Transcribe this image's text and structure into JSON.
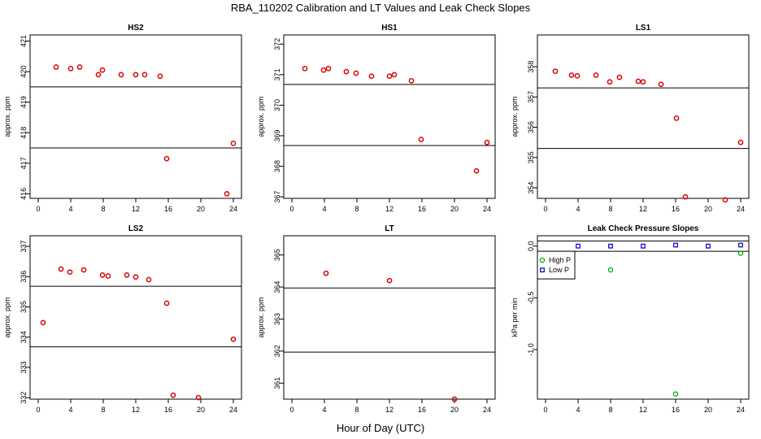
{
  "title": "RBA_110202  Calibration and LT Values and Leak Check Slopes",
  "xlabel": "Hour of Day (UTC)",
  "colors": {
    "point_red": "#dd0000",
    "high_p": "#00aa00",
    "low_p": "#0000cc",
    "line": "#000000"
  },
  "chart_data": [
    {
      "type": "scatter",
      "title": "HS2",
      "ylabel": "approx. ppm",
      "xlim": [
        -1,
        25
      ],
      "ylim": [
        415.85,
        421.2
      ],
      "xticks": [
        0,
        4,
        8,
        12,
        16,
        20,
        24
      ],
      "yticks": [
        416,
        417,
        418,
        419,
        420,
        421
      ],
      "hlines": [
        419.5,
        417.5
      ],
      "points": [
        [
          2.2,
          420.15
        ],
        [
          4,
          420.1
        ],
        [
          5.1,
          420.15
        ],
        [
          7.4,
          419.9
        ],
        [
          7.9,
          420.05
        ],
        [
          10.2,
          419.9
        ],
        [
          12,
          419.9
        ],
        [
          13.1,
          419.9
        ],
        [
          15,
          419.85
        ],
        [
          15.8,
          417.15
        ],
        [
          23.2,
          416.0
        ],
        [
          24,
          417.65
        ]
      ]
    },
    {
      "type": "scatter",
      "title": "HS1",
      "ylabel": "approx. ppm",
      "xlim": [
        -1,
        25
      ],
      "ylim": [
        366.95,
        372.3
      ],
      "xticks": [
        0,
        4,
        8,
        12,
        16,
        20,
        24
      ],
      "yticks": [
        367,
        368,
        369,
        370,
        371,
        372
      ],
      "hlines": [
        370.68,
        368.68
      ],
      "points": [
        [
          1.6,
          371.2
        ],
        [
          3.9,
          371.15
        ],
        [
          4.5,
          371.2
        ],
        [
          6.7,
          371.1
        ],
        [
          7.9,
          371.05
        ],
        [
          9.8,
          370.95
        ],
        [
          12,
          370.95
        ],
        [
          12.6,
          371.0
        ],
        [
          14.7,
          370.8
        ],
        [
          15.9,
          368.88
        ],
        [
          22.7,
          367.85
        ],
        [
          24,
          368.78
        ]
      ]
    },
    {
      "type": "scatter",
      "title": "LS1",
      "ylabel": "approx. ppm",
      "xlim": [
        -1,
        25
      ],
      "ylim": [
        353.65,
        359.05
      ],
      "xticks": [
        0,
        4,
        8,
        12,
        16,
        20,
        24
      ],
      "yticks": [
        354,
        355,
        356,
        357,
        358
      ],
      "hlines": [
        357.3,
        355.3
      ],
      "points": [
        [
          1.2,
          357.85
        ],
        [
          3.2,
          357.72
        ],
        [
          3.9,
          357.7
        ],
        [
          6.2,
          357.72
        ],
        [
          7.9,
          357.5
        ],
        [
          9.1,
          357.65
        ],
        [
          11.4,
          357.52
        ],
        [
          12,
          357.5
        ],
        [
          14.2,
          357.42
        ],
        [
          16.1,
          356.3
        ],
        [
          17.2,
          353.7
        ],
        [
          22.1,
          353.6
        ],
        [
          24,
          355.5
        ]
      ]
    },
    {
      "type": "scatter",
      "title": "LS2",
      "ylabel": "approx. ppm",
      "xlim": [
        -1,
        25
      ],
      "ylim": [
        331.95,
        337.35
      ],
      "xticks": [
        0,
        4,
        8,
        12,
        16,
        20,
        24
      ],
      "yticks": [
        332,
        333,
        334,
        335,
        336,
        337
      ],
      "hlines": [
        335.68,
        333.68
      ],
      "points": [
        [
          0.6,
          334.48
        ],
        [
          2.8,
          336.25
        ],
        [
          3.9,
          336.15
        ],
        [
          5.6,
          336.22
        ],
        [
          7.9,
          336.05
        ],
        [
          8.6,
          336.02
        ],
        [
          10.9,
          336.05
        ],
        [
          12,
          335.99
        ],
        [
          13.6,
          335.9
        ],
        [
          15.8,
          335.12
        ],
        [
          16.6,
          332.08
        ],
        [
          19.7,
          332.0
        ],
        [
          24,
          333.93
        ]
      ]
    },
    {
      "type": "scatter",
      "title": "LT",
      "ylabel": "approx. ppm",
      "xlim": [
        -1,
        25
      ],
      "ylim": [
        360.5,
        365.6
      ],
      "xticks": [
        0,
        4,
        8,
        12,
        16,
        20,
        24
      ],
      "yticks": [
        361,
        362,
        363,
        364,
        365
      ],
      "hlines": [
        363.97,
        361.97
      ],
      "points": [
        [
          4.2,
          364.43
        ],
        [
          12,
          364.2
        ],
        [
          20,
          360.5
        ]
      ]
    },
    {
      "type": "scatter",
      "title": "Leak Check Pressure Slopes",
      "ylabel": "kPa per min",
      "xlim": [
        -1,
        25
      ],
      "ylim": [
        -1.48,
        0.1
      ],
      "xticks": [
        0,
        4,
        8,
        12,
        16,
        20,
        24
      ],
      "yticks": [
        0.0,
        -0.5,
        -1.0
      ],
      "ytick_labels": [
        "0.0",
        "-0.5",
        "-1.0"
      ],
      "hlines": [
        0.05,
        -0.05
      ],
      "legend": {
        "placement": "top-left",
        "entries": [
          "High P",
          "Low P"
        ]
      },
      "series": [
        {
          "name": "High P",
          "points": [
            [
              8,
              -0.23
            ],
            [
              16,
              -1.43
            ],
            [
              24,
              -0.07
            ]
          ]
        },
        {
          "name": "Low P",
          "points": [
            [
              4,
              0.0
            ],
            [
              8,
              0.0
            ],
            [
              12,
              0.0
            ],
            [
              16,
              0.01
            ],
            [
              20,
              0.0
            ],
            [
              24,
              0.01
            ]
          ]
        }
      ]
    }
  ]
}
